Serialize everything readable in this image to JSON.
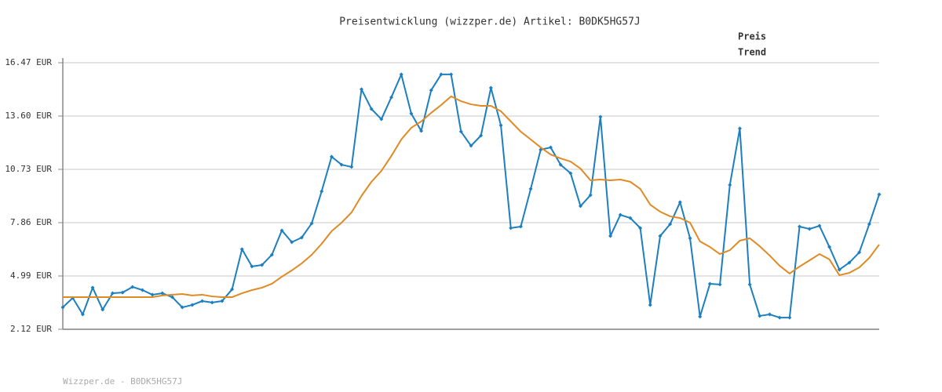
{
  "chart_data": {
    "type": "line",
    "title": "Preisentwicklung (wizzper.de) Artikel: B0DK5HG57J",
    "footer": "Wizzper.de - B0DK5HG57J",
    "categories": [
      null,
      null,
      null,
      null,
      null,
      null,
      null,
      null,
      null,
      null,
      null,
      null,
      null,
      null,
      null,
      null,
      null,
      null,
      null,
      null,
      null,
      null,
      null,
      null,
      null,
      null,
      null,
      null,
      null,
      null,
      null,
      null,
      null,
      null,
      null,
      null,
      null,
      null,
      null,
      null,
      null,
      null,
      null,
      null,
      null,
      null,
      null,
      null,
      null,
      null,
      null,
      null,
      null,
      null,
      null,
      null,
      null,
      null,
      null,
      null,
      null,
      null,
      null,
      null,
      null,
      null,
      null,
      null,
      null,
      null,
      null,
      null,
      null,
      null,
      null,
      null,
      null,
      null,
      null,
      null,
      null,
      null,
      null
    ],
    "ylim": [
      2.12,
      16.47
    ],
    "yticks": [
      {
        "value": 2.12,
        "label": "2.12 EUR"
      },
      {
        "value": 4.99,
        "label": "4.99 EUR"
      },
      {
        "value": 7.86,
        "label": "7.86 EUR"
      },
      {
        "value": 10.73,
        "label": "10.73 EUR"
      },
      {
        "value": 13.6,
        "label": "13.60 EUR"
      },
      {
        "value": 16.47,
        "label": "16.47 EUR"
      }
    ],
    "grid": true,
    "legend": "top-right",
    "series": [
      {
        "name": "Preis",
        "color": "#1b7fc0",
        "marker": "diamond",
        "values": [
          3.3,
          3.81,
          2.92,
          4.36,
          3.18,
          4.06,
          4.1,
          4.4,
          4.23,
          3.98,
          4.06,
          3.85,
          3.3,
          3.43,
          3.64,
          3.56,
          3.64,
          4.27,
          6.43,
          5.5,
          5.58,
          6.13,
          7.44,
          6.81,
          7.06,
          7.82,
          9.55,
          11.41,
          10.98,
          10.86,
          15.04,
          13.98,
          13.43,
          14.61,
          15.84,
          13.73,
          12.8,
          14.99,
          15.84,
          15.84,
          12.76,
          12.0,
          12.55,
          15.12,
          13.1,
          7.57,
          7.65,
          9.68,
          11.79,
          11.91,
          10.98,
          10.52,
          8.75,
          9.34,
          13.56,
          7.14,
          8.28,
          8.11,
          7.57,
          3.43,
          7.14,
          7.78,
          8.96,
          7.02,
          2.8,
          4.57,
          4.53,
          9.89,
          12.93,
          4.53,
          2.84,
          2.92,
          2.75,
          2.75,
          7.65,
          7.52,
          7.69,
          6.55,
          5.33,
          5.71,
          6.26,
          7.78,
          9.38
        ]
      },
      {
        "name": "Trend",
        "color": "#e08a24",
        "values": [
          3.85,
          3.85,
          3.85,
          3.85,
          3.85,
          3.85,
          3.85,
          3.85,
          3.85,
          3.85,
          3.94,
          3.98,
          4.02,
          3.94,
          3.98,
          3.89,
          3.85,
          3.85,
          4.06,
          4.23,
          4.36,
          4.57,
          4.95,
          5.29,
          5.67,
          6.13,
          6.72,
          7.4,
          7.86,
          8.41,
          9.3,
          10.06,
          10.65,
          11.45,
          12.34,
          12.97,
          13.31,
          13.77,
          14.19,
          14.66,
          14.4,
          14.23,
          14.15,
          14.15,
          13.86,
          13.31,
          12.76,
          12.34,
          11.91,
          11.53,
          11.32,
          11.15,
          10.77,
          10.14,
          10.18,
          10.14,
          10.18,
          10.06,
          9.68,
          8.83,
          8.45,
          8.2,
          8.11,
          7.86,
          6.85,
          6.55,
          6.17,
          6.38,
          6.89,
          7.02,
          6.59,
          6.09,
          5.54,
          5.12,
          5.5,
          5.83,
          6.17,
          5.88,
          5.03,
          5.16,
          5.45,
          5.96,
          6.68
        ]
      }
    ]
  }
}
